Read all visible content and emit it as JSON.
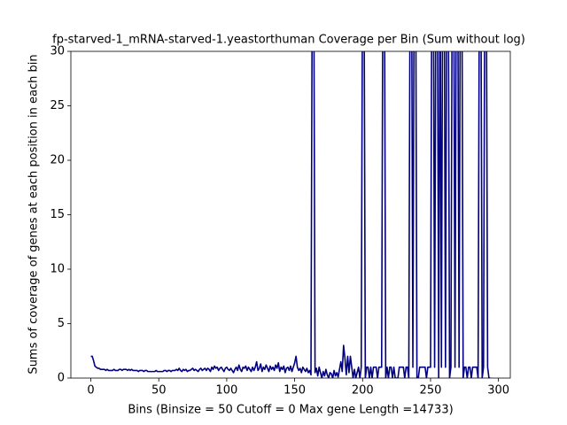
{
  "chart_data": {
    "type": "line",
    "title": "fp-starved-1_mRNA-starved-1.yeastorthuman Coverage per Bin (Sum without log)",
    "xlabel": "Bins  (Binsize = 50 Cutoff = 0 Max gene Length =14733)",
    "ylabel": "Sums of coverage of genes at each position in each bin",
    "color": "#000080",
    "xlim": [
      -14.7,
      308.7
    ],
    "ylim": [
      0,
      30
    ],
    "xticks": [
      0,
      50,
      100,
      150,
      200,
      250,
      300
    ],
    "yticks": [
      0,
      5,
      10,
      15,
      20,
      25,
      30
    ],
    "values": [
      2.0,
      2.0,
      1.6,
      1.1,
      1.0,
      0.9,
      0.9,
      0.8,
      0.8,
      0.8,
      0.8,
      0.7,
      0.8,
      0.7,
      0.7,
      0.7,
      0.7,
      0.8,
      0.7,
      0.7,
      0.7,
      0.8,
      0.8,
      0.7,
      0.8,
      0.8,
      0.8,
      0.7,
      0.8,
      0.7,
      0.8,
      0.7,
      0.7,
      0.7,
      0.7,
      0.6,
      0.7,
      0.7,
      0.7,
      0.6,
      0.7,
      0.7,
      0.6,
      0.6,
      0.6,
      0.6,
      0.6,
      0.6,
      0.7,
      0.6,
      0.6,
      0.6,
      0.6,
      0.6,
      0.7,
      0.7,
      0.6,
      0.7,
      0.7,
      0.6,
      0.7,
      0.7,
      0.7,
      0.8,
      0.7,
      0.9,
      0.7,
      0.6,
      0.8,
      0.7,
      0.8,
      0.6,
      0.7,
      0.7,
      0.8,
      0.9,
      0.7,
      0.8,
      0.7,
      0.6,
      0.8,
      0.9,
      0.7,
      0.8,
      0.9,
      0.7,
      0.9,
      0.8,
      0.6,
      1.0,
      0.8,
      1.1,
      0.9,
      1.0,
      0.7,
      0.9,
      1.0,
      0.8,
      0.6,
      0.9,
      1.0,
      0.8,
      0.7,
      0.9,
      0.7,
      0.5,
      0.8,
      1.0,
      0.7,
      1.2,
      0.8,
      0.6,
      1.0,
      0.9,
      1.1,
      0.7,
      1.0,
      0.8,
      0.6,
      1.0,
      0.7,
      1.0,
      1.5,
      0.7,
      0.9,
      1.3,
      0.6,
      1.0,
      0.8,
      1.2,
      0.9,
      0.6,
      1.1,
      0.8,
      1.0,
      0.7,
      1.2,
      0.9,
      1.4,
      0.6,
      1.0,
      0.8,
      1.1,
      0.5,
      0.9,
      1.0,
      0.7,
      1.1,
      0.6,
      1.0,
      1.4,
      2.0,
      1.0,
      0.7,
      0.9,
      0.5,
      1.0,
      0.8,
      0.6,
      0.9,
      0.5,
      0.7,
      0.3,
      40,
      40,
      0.5,
      0.9,
      0.2,
      1.0,
      0.5,
      0.0,
      0.6,
      0.2,
      0.8,
      0.3,
      0.0,
      0.5,
      0.4,
      0.0,
      0.7,
      0.2,
      0.5,
      0.1,
      0.8,
      1.5,
      0.6,
      3.0,
      1.8,
      0.3,
      2.0,
      0.5,
      2.0,
      1.0,
      0.0,
      0.8,
      0.0,
      0.5,
      1.0,
      0.0,
      1.0,
      40,
      40,
      0.0,
      1.0,
      1.0,
      0.0,
      1.0,
      0.0,
      1.0,
      1.0,
      1.0,
      0.0,
      1.0,
      1.0,
      1.0,
      40,
      40,
      0.0,
      1.0,
      0.0,
      1.0,
      1.0,
      0.0,
      1.0,
      0.0,
      0.0,
      0.0,
      1.0,
      1.0,
      1.0,
      1.0,
      0.0,
      1.0,
      1.0,
      0.0,
      40,
      40,
      1.0,
      40,
      40,
      0.0,
      0.0,
      1.0,
      1.0,
      1.0,
      1.0,
      1.0,
      0.0,
      1.0,
      1.0,
      1.0,
      40,
      40,
      1.0,
      40,
      40,
      0.0,
      40,
      1.0,
      40,
      40,
      1.0,
      40,
      40,
      0.0,
      1.0,
      40,
      40,
      1.0,
      40,
      40,
      1.0,
      40,
      40,
      0.0,
      1.0,
      1.0,
      0.0,
      1.0,
      1.0,
      0.0,
      1.0,
      1.0,
      1.0,
      1.0,
      0.0,
      40,
      40,
      0.0,
      1.0,
      40,
      40,
      1.0,
      0.0,
      0.0
    ]
  }
}
